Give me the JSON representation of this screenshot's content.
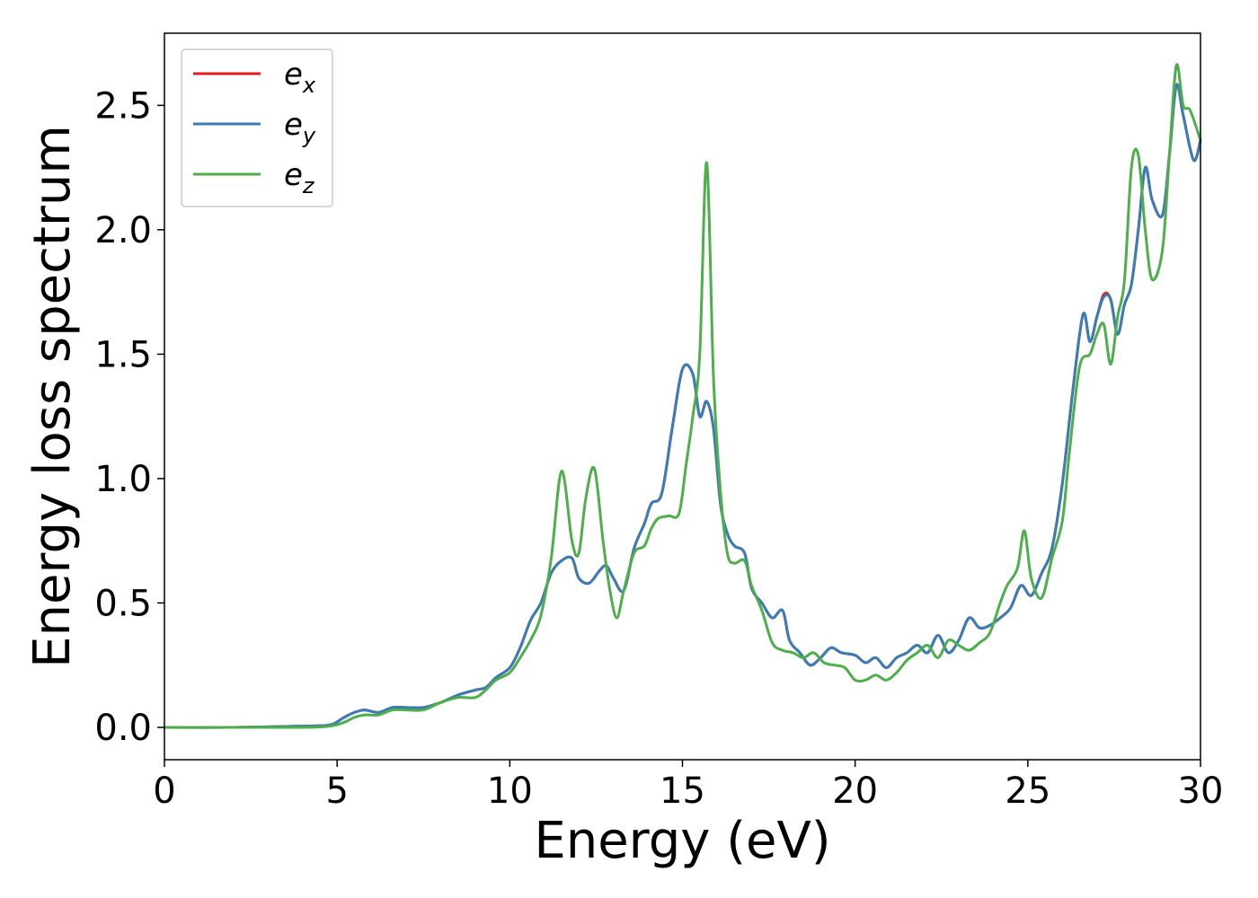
{
  "chart_data": {
    "type": "line",
    "xlabel": "Energy (eV)",
    "ylabel": "Energy loss spectrum",
    "xlim": [
      0,
      30
    ],
    "ylim": [
      -0.13,
      2.79
    ],
    "xticks": [
      "0",
      "5",
      "10",
      "15",
      "20",
      "25",
      "30"
    ],
    "yticks": [
      "0.0",
      "0.5",
      "1.0",
      "1.5",
      "2.0",
      "2.5"
    ],
    "grid": false,
    "legend_position": "top-left",
    "series": [
      {
        "name": "e",
        "subscript": "x",
        "color": "#e41a1c",
        "x": [
          0,
          2,
          4,
          4.8,
          5.2,
          5.5,
          5.8,
          6.2,
          6.6,
          7.0,
          7.5,
          8.0,
          8.5,
          9.0,
          9.3,
          9.6,
          10.0,
          10.3,
          10.6,
          10.9,
          11.2,
          11.5,
          11.8,
          12.0,
          12.3,
          12.6,
          12.8,
          13.0,
          13.3,
          13.6,
          13.9,
          14.1,
          14.4,
          14.7,
          15.0,
          15.3,
          15.5,
          15.7,
          15.9,
          16.1,
          16.3,
          16.5,
          16.8,
          17.0,
          17.3,
          17.6,
          17.9,
          18.1,
          18.4,
          18.7,
          19.0,
          19.3,
          19.6,
          20.0,
          20.3,
          20.6,
          20.9,
          21.2,
          21.5,
          21.8,
          22.1,
          22.4,
          22.7,
          23.0,
          23.3,
          23.6,
          23.9,
          24.2,
          24.5,
          24.8,
          25.1,
          25.4,
          25.7,
          26.0,
          26.3,
          26.6,
          26.8,
          27.0,
          27.2,
          27.4,
          27.6,
          27.8,
          28.0,
          28.2,
          28.4,
          28.6,
          28.9,
          29.1,
          29.3,
          29.5,
          29.8,
          30.0
        ],
        "y": [
          0.0,
          0.0,
          0.005,
          0.01,
          0.04,
          0.06,
          0.07,
          0.06,
          0.08,
          0.08,
          0.08,
          0.1,
          0.13,
          0.15,
          0.16,
          0.2,
          0.24,
          0.32,
          0.43,
          0.5,
          0.62,
          0.67,
          0.68,
          0.6,
          0.58,
          0.63,
          0.65,
          0.6,
          0.55,
          0.72,
          0.82,
          0.9,
          0.94,
          1.2,
          1.44,
          1.42,
          1.25,
          1.31,
          1.2,
          0.9,
          0.78,
          0.73,
          0.7,
          0.56,
          0.5,
          0.44,
          0.47,
          0.35,
          0.3,
          0.25,
          0.28,
          0.32,
          0.3,
          0.29,
          0.26,
          0.28,
          0.24,
          0.28,
          0.3,
          0.33,
          0.3,
          0.37,
          0.3,
          0.35,
          0.44,
          0.4,
          0.41,
          0.44,
          0.48,
          0.57,
          0.53,
          0.62,
          0.72,
          0.98,
          1.35,
          1.66,
          1.55,
          1.65,
          1.74,
          1.72,
          1.58,
          1.7,
          1.78,
          2.0,
          2.25,
          2.12,
          2.06,
          2.3,
          2.58,
          2.46,
          2.28,
          2.36
        ]
      },
      {
        "name": "e",
        "subscript": "y",
        "color": "#377eb8",
        "x": [
          0,
          2,
          4,
          4.8,
          5.2,
          5.5,
          5.8,
          6.2,
          6.6,
          7.0,
          7.5,
          8.0,
          8.5,
          9.0,
          9.3,
          9.6,
          10.0,
          10.3,
          10.6,
          10.9,
          11.2,
          11.5,
          11.8,
          12.0,
          12.3,
          12.6,
          12.8,
          13.0,
          13.3,
          13.6,
          13.9,
          14.1,
          14.4,
          14.7,
          15.0,
          15.3,
          15.5,
          15.7,
          15.9,
          16.1,
          16.3,
          16.5,
          16.8,
          17.0,
          17.3,
          17.6,
          17.9,
          18.1,
          18.4,
          18.7,
          19.0,
          19.3,
          19.6,
          20.0,
          20.3,
          20.6,
          20.9,
          21.2,
          21.5,
          21.8,
          22.1,
          22.4,
          22.7,
          23.0,
          23.3,
          23.6,
          23.9,
          24.2,
          24.5,
          24.8,
          25.1,
          25.4,
          25.7,
          26.0,
          26.3,
          26.6,
          26.8,
          27.0,
          27.2,
          27.4,
          27.6,
          27.8,
          28.0,
          28.2,
          28.4,
          28.6,
          28.9,
          29.1,
          29.3,
          29.5,
          29.8,
          30.0
        ],
        "y": [
          0.0,
          0.0,
          0.005,
          0.01,
          0.04,
          0.06,
          0.07,
          0.06,
          0.08,
          0.08,
          0.08,
          0.1,
          0.13,
          0.15,
          0.16,
          0.2,
          0.24,
          0.32,
          0.43,
          0.5,
          0.62,
          0.67,
          0.68,
          0.6,
          0.58,
          0.63,
          0.65,
          0.6,
          0.55,
          0.72,
          0.82,
          0.9,
          0.94,
          1.2,
          1.44,
          1.42,
          1.25,
          1.31,
          1.2,
          0.9,
          0.78,
          0.73,
          0.7,
          0.56,
          0.5,
          0.44,
          0.47,
          0.35,
          0.3,
          0.25,
          0.28,
          0.32,
          0.3,
          0.29,
          0.26,
          0.28,
          0.24,
          0.28,
          0.3,
          0.33,
          0.3,
          0.37,
          0.3,
          0.35,
          0.44,
          0.4,
          0.41,
          0.44,
          0.48,
          0.57,
          0.53,
          0.62,
          0.72,
          0.98,
          1.35,
          1.66,
          1.55,
          1.65,
          1.73,
          1.72,
          1.58,
          1.7,
          1.78,
          2.0,
          2.25,
          2.12,
          2.06,
          2.3,
          2.58,
          2.46,
          2.28,
          2.36
        ]
      },
      {
        "name": "e",
        "subscript": "z",
        "color": "#4daf4a",
        "x": [
          0,
          2,
          4,
          4.8,
          5.2,
          5.5,
          5.8,
          6.2,
          6.6,
          7.0,
          7.5,
          8.0,
          8.5,
          9.0,
          9.3,
          9.6,
          10.0,
          10.3,
          10.6,
          10.9,
          11.2,
          11.5,
          11.8,
          12.0,
          12.2,
          12.45,
          12.7,
          12.9,
          13.1,
          13.3,
          13.6,
          13.9,
          14.1,
          14.3,
          14.6,
          14.9,
          15.1,
          15.3,
          15.5,
          15.7,
          15.9,
          16.1,
          16.3,
          16.5,
          16.8,
          17.0,
          17.3,
          17.6,
          17.9,
          18.2,
          18.5,
          18.8,
          19.1,
          19.4,
          19.7,
          20.0,
          20.3,
          20.6,
          20.9,
          21.2,
          21.5,
          21.8,
          22.1,
          22.4,
          22.7,
          23.0,
          23.3,
          23.6,
          23.9,
          24.2,
          24.4,
          24.7,
          24.9,
          25.1,
          25.4,
          25.7,
          26.0,
          26.2,
          26.5,
          26.8,
          27.0,
          27.2,
          27.4,
          27.6,
          27.8,
          28.0,
          28.2,
          28.4,
          28.6,
          28.9,
          29.1,
          29.3,
          29.5,
          29.7,
          30.0
        ],
        "y": [
          0.0,
          0.0,
          0.0,
          0.005,
          0.02,
          0.04,
          0.05,
          0.05,
          0.07,
          0.07,
          0.07,
          0.1,
          0.12,
          0.12,
          0.15,
          0.19,
          0.22,
          0.28,
          0.35,
          0.45,
          0.68,
          1.03,
          0.75,
          0.7,
          0.92,
          1.04,
          0.75,
          0.55,
          0.44,
          0.55,
          0.7,
          0.73,
          0.8,
          0.84,
          0.85,
          0.86,
          1.05,
          1.25,
          1.5,
          2.27,
          1.4,
          0.95,
          0.7,
          0.66,
          0.67,
          0.57,
          0.47,
          0.34,
          0.31,
          0.3,
          0.28,
          0.3,
          0.26,
          0.25,
          0.24,
          0.19,
          0.19,
          0.21,
          0.19,
          0.22,
          0.27,
          0.3,
          0.33,
          0.28,
          0.35,
          0.33,
          0.31,
          0.34,
          0.38,
          0.5,
          0.57,
          0.64,
          0.79,
          0.6,
          0.52,
          0.68,
          0.83,
          1.1,
          1.45,
          1.5,
          1.58,
          1.62,
          1.46,
          1.65,
          1.8,
          2.25,
          2.3,
          2.0,
          1.8,
          1.92,
          2.3,
          2.66,
          2.5,
          2.48,
          2.36
        ]
      }
    ]
  }
}
